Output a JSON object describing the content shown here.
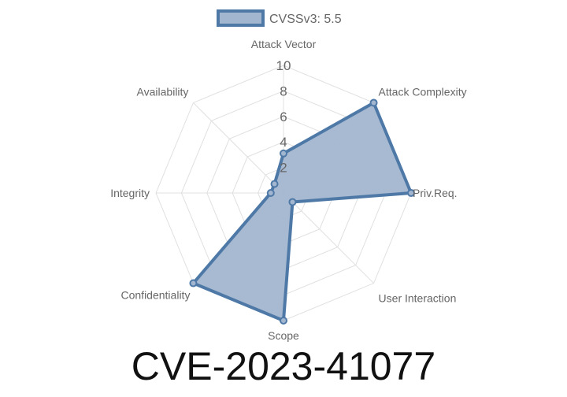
{
  "chart_data": {
    "type": "radar",
    "title": "CVE-2023-41077",
    "axes": [
      "Attack Vector",
      "Attack Complexity",
      "Priv.Req.",
      "User Interaction",
      "Scope",
      "Confidentiality",
      "Integrity",
      "Availability"
    ],
    "series": [
      {
        "name": "CVSSv3: 5.5",
        "values": [
          3.1,
          10,
          10,
          1,
          10,
          10,
          1,
          1
        ]
      }
    ],
    "rlim": [
      0,
      10
    ],
    "ticks": [
      "2",
      "4",
      "6",
      "8",
      "10"
    ],
    "tick_values": [
      2,
      4,
      6,
      8,
      10
    ],
    "grid": true,
    "legend_position": "top",
    "colors": {
      "line": "#4e79a7",
      "fill": "#a3b6d0",
      "grid": "#e0e0e0"
    }
  }
}
